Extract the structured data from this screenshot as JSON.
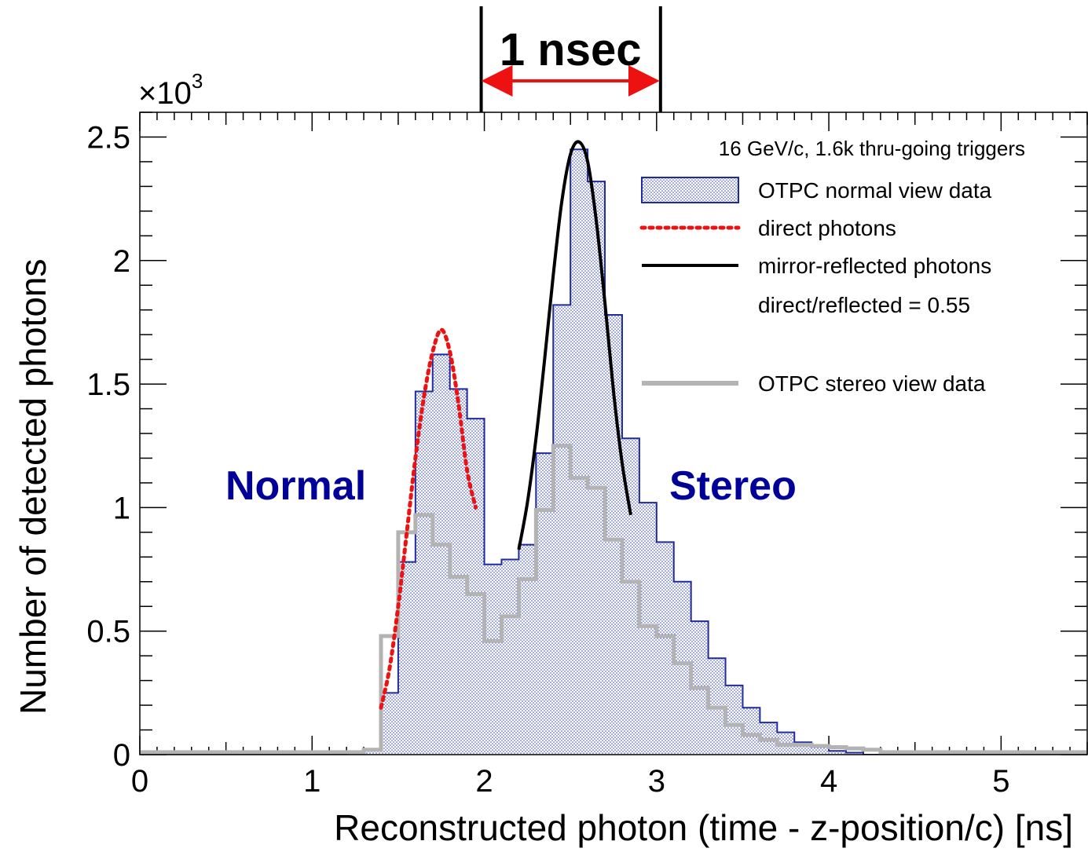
{
  "chart_data": {
    "type": "bar",
    "xlabel": "Reconstructed photon (time - z-position/c) [ns]",
    "ylabel": "Number of detected photons",
    "y_multiplier": "×10",
    "y_multiplier_exp": "3",
    "xlim": [
      0,
      5.5
    ],
    "ylim": [
      0,
      2.6
    ],
    "x_ticks": [
      "0",
      "1",
      "2",
      "3",
      "4",
      "5"
    ],
    "y_ticks": [
      "0",
      "0.5",
      "1",
      "1.5",
      "2",
      "2.5"
    ],
    "bin_width": 0.1,
    "bin_edges_start": 0,
    "legend_title": "16 GeV/c, 1.6k thru-going triggers",
    "legend_ratio": "direct/reflected = 0.55",
    "legend_placement": "top-right",
    "series": [
      {
        "name": "OTPC normal view data",
        "kind": "histogram-filled",
        "color": "#1e2a9e",
        "values": [
          0,
          0,
          0,
          0,
          0,
          0,
          0,
          0,
          0,
          0,
          0,
          0,
          0.01,
          0.02,
          0.25,
          0.78,
          1.47,
          1.62,
          1.48,
          1.36,
          0.77,
          0.79,
          0.85,
          1.22,
          1.82,
          2.45,
          2.32,
          1.78,
          1.28,
          1.02,
          0.86,
          0.7,
          0.54,
          0.39,
          0.28,
          0.19,
          0.13,
          0.09,
          0.05,
          0.03,
          0.015,
          0.008,
          0,
          0,
          0,
          0,
          0,
          0,
          0,
          0,
          0,
          0,
          0,
          0,
          0
        ]
      },
      {
        "name": "OTPC stereo view data",
        "kind": "histogram-line",
        "color": "#b3b3b3",
        "values": [
          0.01,
          0.01,
          0.01,
          0.01,
          0.01,
          0.01,
          0.01,
          0.01,
          0.01,
          0.01,
          0.01,
          0.01,
          0.01,
          0.02,
          0.48,
          0.9,
          0.97,
          0.85,
          0.72,
          0.65,
          0.46,
          0.56,
          0.71,
          0.99,
          1.25,
          1.12,
          1.08,
          0.87,
          0.7,
          0.52,
          0.48,
          0.37,
          0.27,
          0.19,
          0.12,
          0.08,
          0.06,
          0.04,
          0.04,
          0.035,
          0.03,
          0.025,
          0.02,
          0.01,
          0.01,
          0.01,
          0.01,
          0.01,
          0.01,
          0.01,
          0.01,
          0.01,
          0.01,
          0.01,
          0.01
        ]
      },
      {
        "name": "direct photons",
        "kind": "dotted-curve",
        "color": "#ee1111",
        "x": [
          1.4,
          1.45,
          1.5,
          1.55,
          1.6,
          1.65,
          1.7,
          1.75,
          1.8,
          1.85,
          1.9,
          1.95
        ],
        "y": [
          0.19,
          0.35,
          0.6,
          0.9,
          1.2,
          1.45,
          1.63,
          1.72,
          1.63,
          1.42,
          1.15,
          1.0
        ]
      },
      {
        "name": "mirror-reflected photons",
        "kind": "line-curve",
        "color": "#000000",
        "x": [
          2.2,
          2.25,
          2.3,
          2.35,
          2.4,
          2.45,
          2.5,
          2.55,
          2.6,
          2.65,
          2.7,
          2.75,
          2.8,
          2.85
        ],
        "y": [
          0.83,
          1.02,
          1.28,
          1.6,
          1.94,
          2.24,
          2.43,
          2.48,
          2.4,
          2.16,
          1.83,
          1.47,
          1.18,
          0.97
        ]
      }
    ],
    "annotations": {
      "normal": "Normal",
      "stereo": "Stereo",
      "span": "1 nsec",
      "span_from": 2,
      "span_to": 3,
      "annot_color": "#000099",
      "span_arrow_color": "#ee1111"
    }
  }
}
